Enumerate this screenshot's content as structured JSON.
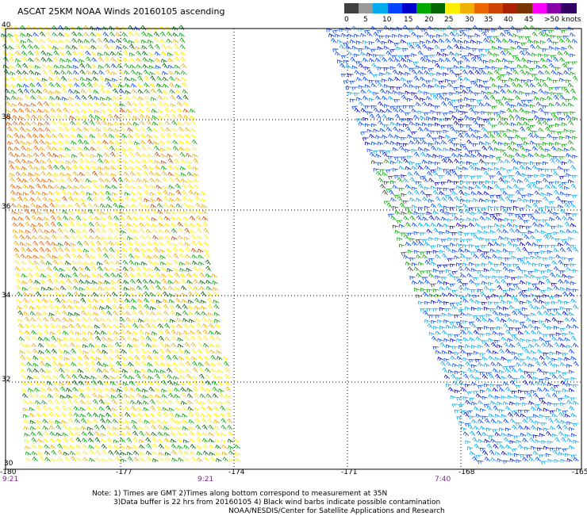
{
  "title": "ASCAT 25KM NOAA Winds 20160105 ascending",
  "legend": {
    "colors": [
      "#404040",
      "#9a9a9a",
      "#00aaee",
      "#0044ff",
      "#0000cc",
      "#00aa00",
      "#006600",
      "#ffee00",
      "#f0b000",
      "#ee6600",
      "#cc4400",
      "#aa2200",
      "#773300",
      "#ff00ff",
      "#8800aa",
      "#330066"
    ],
    "labels": [
      "0",
      "5",
      "10",
      "15",
      "20",
      "25",
      "30",
      "35",
      "40",
      "45",
      ">50 knots"
    ]
  },
  "axes": {
    "lat_labels": [
      "40",
      "38",
      "36",
      "34",
      "32",
      "30"
    ],
    "lon_labels": [
      "-180",
      "-177",
      "-174",
      "-171",
      "-168",
      "-165"
    ],
    "time_labels": [
      "9:21",
      "9:21",
      "7:40"
    ]
  },
  "notes": {
    "line1": "Note: 1) Times are GMT 2)Times along bottom correspond to measurement at 35N",
    "line2": "3)Data buffer is 22 hrs from 20160105 4) Black wind barbs indicate possible contamination",
    "line3": "NOAA/NESDIS/Center for Satellite Applications and Research"
  }
}
